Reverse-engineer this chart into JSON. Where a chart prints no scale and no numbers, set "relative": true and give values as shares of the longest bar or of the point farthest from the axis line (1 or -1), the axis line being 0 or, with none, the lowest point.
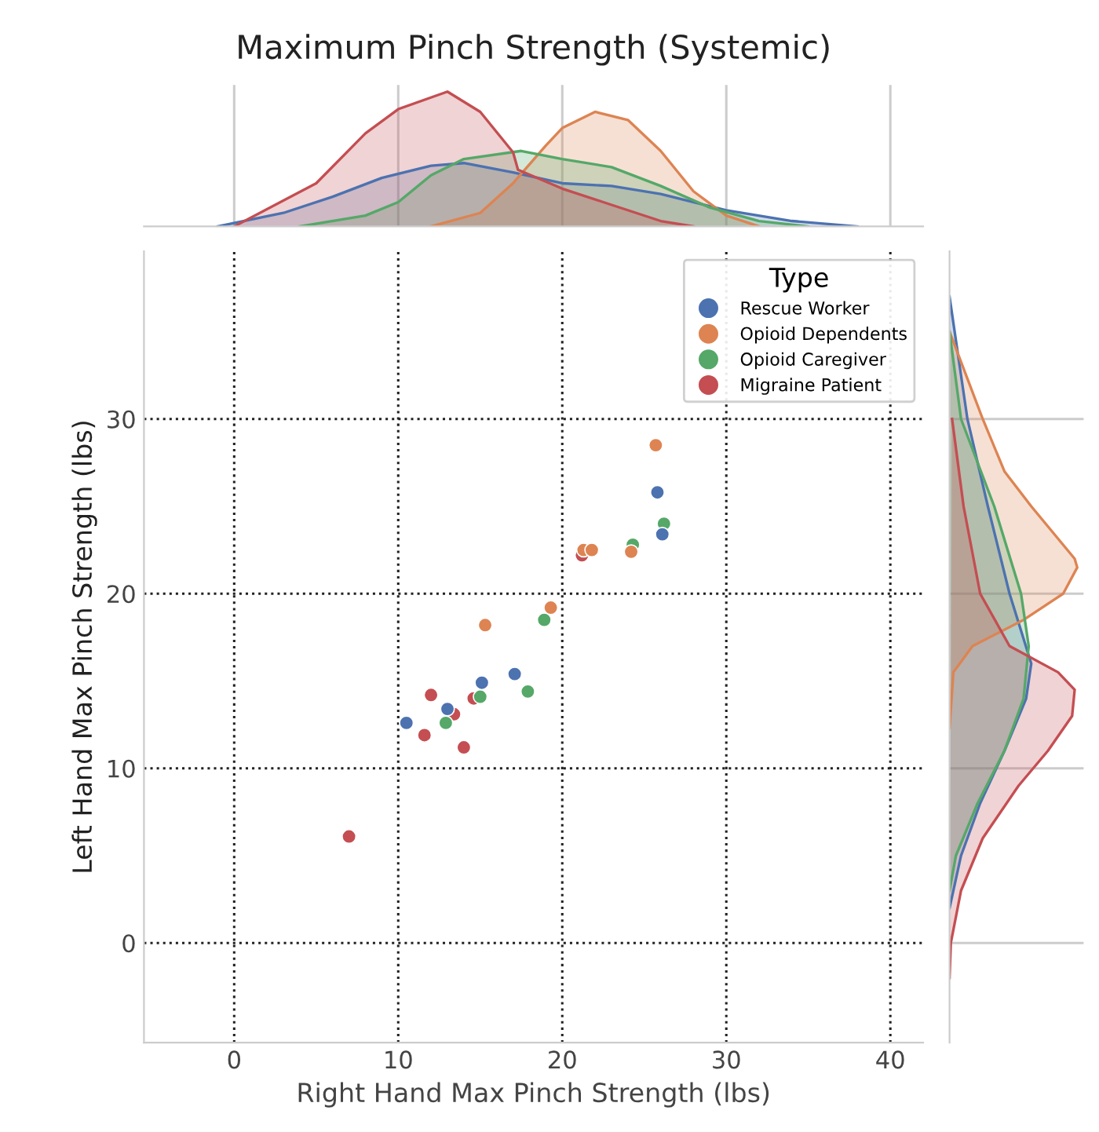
{
  "chart_data": [
    {
      "type": "area",
      "title": "Maximum Pinch Strength (Systemic)",
      "relative": true,
      "xlim": [
        -5.5,
        42
      ],
      "xticks": [
        0,
        10,
        20,
        30,
        40
      ],
      "tick_labels": false,
      "grid": "x",
      "series": [
        {
          "color": "#4c72b0",
          "x": [
            -1,
            3,
            6,
            9,
            12,
            14,
            17,
            20,
            23,
            26,
            30,
            34,
            38
          ],
          "values": [
            0,
            0.1,
            0.22,
            0.36,
            0.45,
            0.47,
            0.4,
            0.32,
            0.3,
            0.24,
            0.12,
            0.04,
            0
          ]
        },
        {
          "color": "#dd8452",
          "x": [
            12,
            15,
            17,
            19,
            20,
            22,
            24,
            26,
            28,
            30,
            32
          ],
          "values": [
            0,
            0.1,
            0.32,
            0.6,
            0.73,
            0.85,
            0.79,
            0.56,
            0.26,
            0.08,
            0
          ]
        },
        {
          "color": "#55a868",
          "x": [
            4,
            8,
            10,
            12,
            14,
            17.5,
            20,
            23,
            26,
            29,
            32,
            35
          ],
          "values": [
            0,
            0.08,
            0.18,
            0.38,
            0.5,
            0.56,
            0.5,
            0.44,
            0.3,
            0.14,
            0.04,
            0
          ]
        },
        {
          "color": "#c44e52",
          "x": [
            0,
            5,
            8,
            10,
            13,
            15,
            17,
            17.3,
            20,
            22.5,
            26,
            28
          ],
          "values": [
            0,
            0.32,
            0.69,
            0.87,
            1.0,
            0.85,
            0.55,
            0.42,
            0.28,
            0.18,
            0.04,
            0
          ]
        }
      ]
    },
    {
      "type": "scatter",
      "xlabel": "Right Hand Max Pinch Strength (lbs)",
      "ylabel": "Left Hand Max Pinch Strength (lbs)",
      "xlim": [
        -5.5,
        42
      ],
      "ylim": [
        -5.7,
        39.6
      ],
      "xticks": [
        0,
        10,
        20,
        30,
        40
      ],
      "yticks": [
        0,
        10,
        20,
        30
      ],
      "grid": true,
      "line_style": "dotted",
      "legend": "top right",
      "legend_title": "Type",
      "marker": "circle",
      "series": [
        {
          "name": "Rescue Worker",
          "color": "#4c72b0",
          "x": [
            10.5,
            13.0,
            15.1,
            17.1,
            25.8,
            26.1
          ],
          "values": [
            12.6,
            13.4,
            14.9,
            15.4,
            25.8,
            23.4
          ]
        },
        {
          "name": "Opioid Dependents",
          "color": "#dd8452",
          "x": [
            25.7,
            21.3,
            21.8,
            24.2,
            15.3,
            19.3
          ],
          "values": [
            28.5,
            22.5,
            22.5,
            22.4,
            18.2,
            19.2
          ]
        },
        {
          "name": "Opioid Caregiver",
          "color": "#55a868",
          "x": [
            24.3,
            26.2,
            18.9,
            17.9,
            15.0,
            12.9
          ],
          "values": [
            22.8,
            24.0,
            18.5,
            14.4,
            14.1,
            12.6
          ]
        },
        {
          "name": "Migraine Patient",
          "color": "#c44e52",
          "x": [
            21.2,
            12.0,
            14.6,
            13.4,
            11.6,
            14.0,
            7.0
          ],
          "values": [
            22.2,
            14.2,
            14.0,
            13.1,
            11.9,
            11.2,
            6.1
          ]
        }
      ]
    },
    {
      "type": "area",
      "orientation": "horizontal",
      "relative": true,
      "ylim": [
        -5.7,
        39.6
      ],
      "yticks": [
        0,
        10,
        20,
        30
      ],
      "tick_labels": false,
      "grid": "y",
      "series": [
        {
          "color": "#4c72b0",
          "x": [
            2,
            5,
            8,
            11,
            14,
            16,
            20,
            25,
            30,
            37
          ],
          "values": [
            0,
            0.09,
            0.24,
            0.43,
            0.6,
            0.64,
            0.47,
            0.3,
            0.14,
            0
          ]
        },
        {
          "color": "#dd8452",
          "x": [
            12.3,
            15.5,
            17,
            18.5,
            20,
            21.5,
            22,
            25,
            27,
            30,
            35
          ],
          "values": [
            0,
            0.03,
            0.18,
            0.58,
            0.89,
            1.0,
            0.98,
            0.64,
            0.43,
            0.26,
            0
          ]
        },
        {
          "color": "#55a868",
          "x": [
            3,
            5,
            8,
            11,
            14,
            17,
            20,
            25,
            30,
            35
          ],
          "values": [
            0,
            0.05,
            0.22,
            0.43,
            0.58,
            0.62,
            0.56,
            0.35,
            0.09,
            0
          ]
        },
        {
          "color": "#c44e52",
          "x": [
            -2,
            0,
            3,
            6,
            9,
            11,
            13,
            14.5,
            15.5,
            17,
            20,
            25,
            30
          ],
          "values": [
            0,
            0.01,
            0.09,
            0.26,
            0.54,
            0.77,
            0.96,
            0.98,
            0.85,
            0.47,
            0.24,
            0.11,
            0.02
          ]
        }
      ]
    }
  ]
}
